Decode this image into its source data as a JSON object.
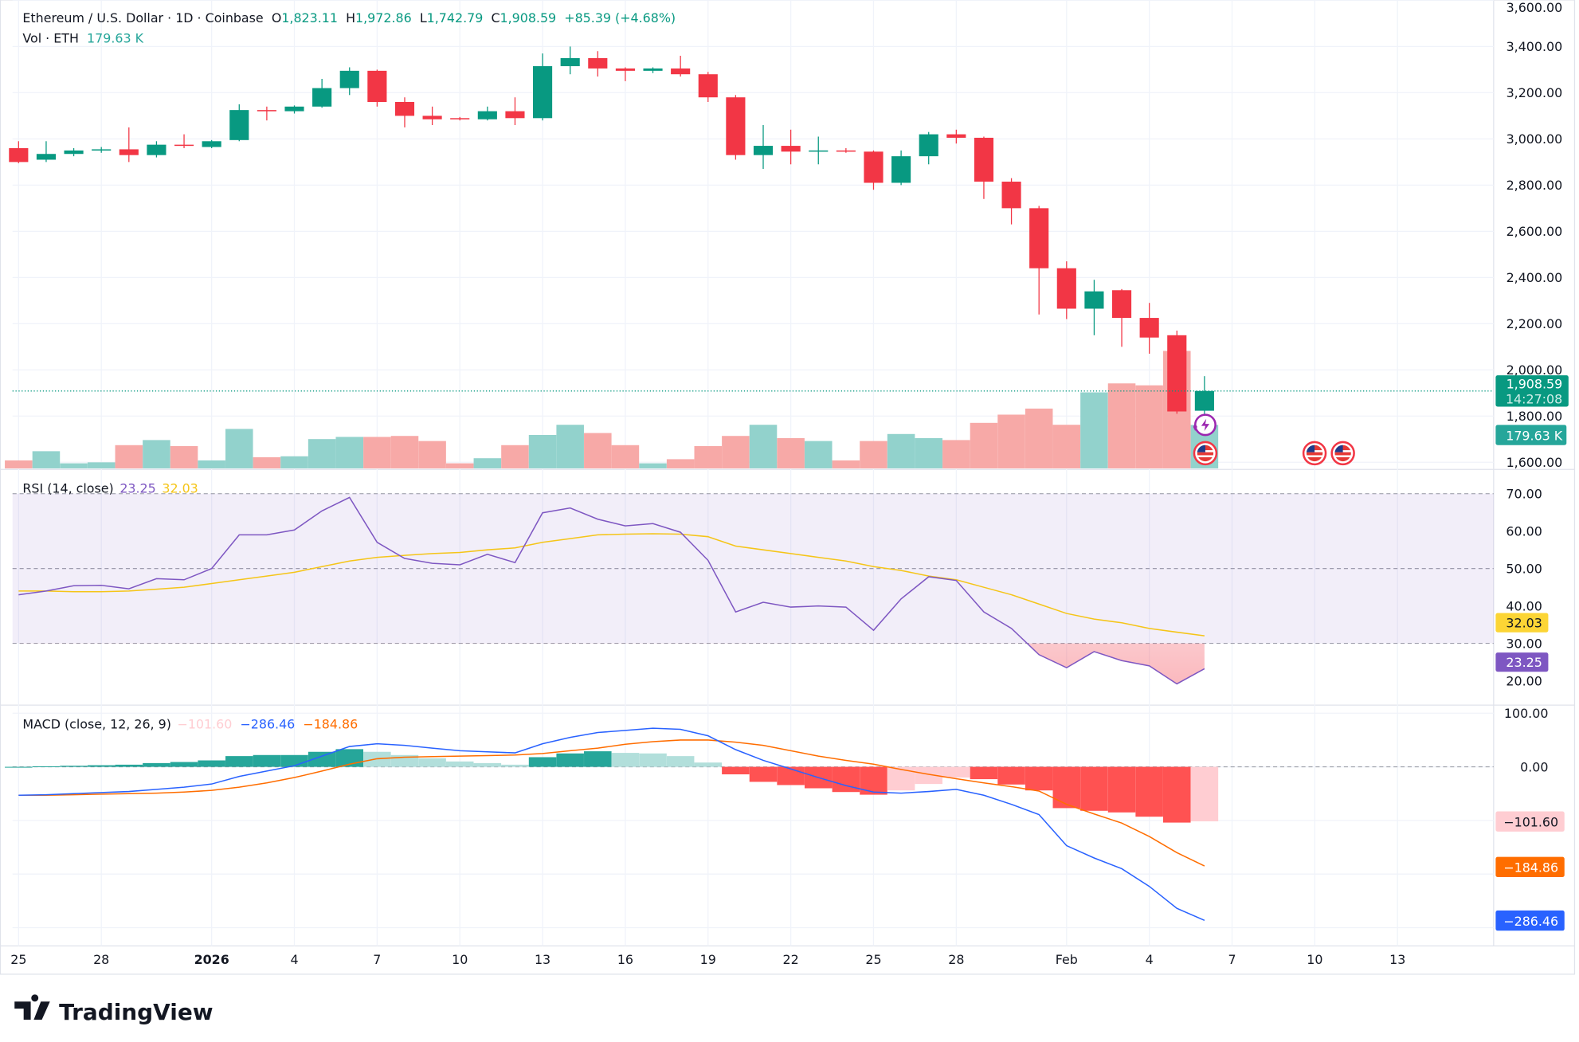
{
  "header": {
    "symbol": "Ethereum / U.S. Dollar · 1D · Coinbase",
    "o_label": "O",
    "o": "1,823.11",
    "h_label": "H",
    "h": "1,972.86",
    "l_label": "L",
    "l": "1,742.79",
    "c_label": "C",
    "c": "1,908.59",
    "change": "+85.39 (+4.68%)",
    "vol_label": "Vol · ETH",
    "vol": "179.63 K"
  },
  "rsi_legend": {
    "name": "RSI (14, close)",
    "rsi": "23.25",
    "ma": "32.03"
  },
  "macd_legend": {
    "name": "MACD (close, 12, 26, 9)",
    "hist": "−101.60",
    "macd": "−286.46",
    "signal": "−184.86"
  },
  "axis_labels": {
    "price_last": "1,908.59",
    "countdown": "14:27:08",
    "volume_last": "179.63 K",
    "rsi_ma": "32.03",
    "rsi": "23.25",
    "macd_hist": "−101.60",
    "macd_signal": "−184.86",
    "macd": "−286.46"
  },
  "brand": "TradingView",
  "colors": {
    "up": "#089981",
    "down": "#f23645",
    "rsi": "#7e57c2",
    "rsi_ma": "#f5c518",
    "macd": "#2962ff",
    "signal": "#ff6d00"
  },
  "icons": [
    "lightning-icon",
    "us-flag-icon",
    "us-flag-icon",
    "us-flag-icon"
  ],
  "chart_data": [
    {
      "type": "candlestick",
      "title": "Ethereum / U.S. Dollar · 1D · Coinbase",
      "ylim": [
        1600,
        3600
      ],
      "y_ticks": [
        "1,600.00",
        "1,800.00",
        "2,000.00",
        "2,200.00",
        "2,400.00",
        "2,600.00",
        "2,800.00",
        "3,000.00",
        "3,200.00",
        "3,400.00",
        "3,600.00"
      ],
      "start_date": "2025-12-25",
      "x_ticks": [
        {
          "label": "25",
          "day": 0
        },
        {
          "label": "28",
          "day": 3
        },
        {
          "label": "2026",
          "day": 7
        },
        {
          "label": "4",
          "day": 10
        },
        {
          "label": "7",
          "day": 13
        },
        {
          "label": "10",
          "day": 16
        },
        {
          "label": "13",
          "day": 19
        },
        {
          "label": "16",
          "day": 22
        },
        {
          "label": "19",
          "day": 25
        },
        {
          "label": "22",
          "day": 28
        },
        {
          "label": "25",
          "day": 31
        },
        {
          "label": "28",
          "day": 34
        },
        {
          "label": "Feb",
          "day": 38
        },
        {
          "label": "4",
          "day": 41
        },
        {
          "label": "7",
          "day": 44
        },
        {
          "label": "10",
          "day": 47
        },
        {
          "label": "13",
          "day": 50
        }
      ],
      "open": [
        2960,
        2910,
        2935,
        2950,
        2955,
        2930,
        2975,
        2965,
        2995,
        3125,
        3120,
        3140,
        3220,
        3295,
        3160,
        3100,
        3090,
        3085,
        3120,
        3090,
        3315,
        3350,
        3305,
        3295,
        3305,
        3280,
        3180,
        2930,
        2970,
        2945,
        2950,
        2945,
        2810,
        2925,
        3020,
        3005,
        2815,
        2700,
        2440,
        2265,
        2345,
        2225,
        2150,
        1823.11
      ],
      "high": [
        2990,
        2990,
        2960,
        2965,
        3050,
        2990,
        3020,
        2995,
        3150,
        3140,
        3145,
        3260,
        3310,
        3300,
        3180,
        3140,
        3095,
        3140,
        3180,
        3370,
        3400,
        3380,
        3310,
        3310,
        3360,
        3290,
        3190,
        3060,
        3040,
        3010,
        2960,
        2950,
        2950,
        3030,
        3040,
        3010,
        2830,
        2710,
        2470,
        2390,
        2350,
        2290,
        2170,
        1972.86
      ],
      "low": [
        2895,
        2900,
        2925,
        2940,
        2900,
        2920,
        2960,
        2960,
        2990,
        3080,
        3110,
        3135,
        3190,
        3140,
        3050,
        3060,
        3080,
        3080,
        3060,
        3080,
        3280,
        3270,
        3250,
        3285,
        3270,
        3160,
        2910,
        2870,
        2890,
        2890,
        2940,
        2780,
        2800,
        2890,
        2980,
        2740,
        2630,
        2240,
        2220,
        2150,
        2100,
        2070,
        1810,
        1742.79
      ],
      "close": [
        2900,
        2935,
        2950,
        2955,
        2930,
        2975,
        2970,
        2990,
        3125,
        3120,
        3140,
        3220,
        3295,
        3160,
        3100,
        3085,
        3085,
        3120,
        3090,
        3315,
        3350,
        3305,
        3295,
        3305,
        3280,
        3180,
        2930,
        2970,
        2945,
        2950,
        2945,
        2810,
        2925,
        3020,
        3005,
        2815,
        2700,
        2440,
        2265,
        2340,
        2225,
        2140,
        1820,
        1908.59
      ],
      "volume_k": [
        33,
        71,
        21,
        25,
        96,
        117,
        92,
        33,
        163,
        46,
        50,
        121,
        130,
        130,
        134,
        113,
        21,
        42,
        96,
        138,
        180,
        146,
        96,
        21,
        38,
        92,
        134,
        180,
        125,
        113,
        33,
        113,
        142,
        125,
        117,
        188,
        222,
        247,
        180,
        314,
        351,
        343,
        485,
        179.63
      ],
      "last_price": 1908.59
    },
    {
      "type": "line",
      "title": "RSI (14, close)",
      "ylim": [
        15,
        75
      ],
      "y_ticks": [
        "20.00",
        "30.00",
        "40.00",
        "50.00",
        "60.00",
        "70.00"
      ],
      "band": [
        30,
        70
      ],
      "series": [
        {
          "name": "RSI",
          "values": [
            43,
            44,
            45.4,
            45.5,
            44.6,
            47.3,
            47,
            50,
            59,
            59,
            60.3,
            65.4,
            69,
            57,
            52.7,
            51.4,
            51,
            53.8,
            51.6,
            64.9,
            66.2,
            63.2,
            61.4,
            62,
            59.7,
            52.2,
            38.4,
            41,
            39.7,
            40,
            39.7,
            33.5,
            41.9,
            47.8,
            46.8,
            38.4,
            34,
            27,
            23.5,
            27.8,
            25.4,
            24,
            19.2,
            23.25
          ]
        },
        {
          "name": "RSI-based MA",
          "values": [
            44,
            44,
            43.8,
            43.8,
            44,
            44.5,
            45,
            46,
            47,
            48,
            49,
            50.5,
            52,
            53,
            53.5,
            54,
            54.3,
            55,
            55.5,
            57,
            58,
            59,
            59.2,
            59.3,
            59.2,
            58.5,
            56,
            55,
            54,
            53,
            52,
            50.5,
            49.5,
            48,
            47,
            45,
            43,
            40.5,
            38,
            36.5,
            35.5,
            34,
            33,
            32.03
          ]
        }
      ]
    },
    {
      "type": "line+bar",
      "title": "MACD (close, 12, 26, 9)",
      "ylim": [
        -300,
        100
      ],
      "y_ticks": [
        "100.00",
        "0.00"
      ],
      "series": [
        {
          "name": "MACD",
          "values": [
            -53,
            -52,
            -50,
            -48,
            -46,
            -42,
            -38,
            -32,
            -18,
            -8,
            2,
            20,
            38,
            43,
            40,
            35,
            30,
            28,
            26,
            43,
            55,
            64,
            68,
            72,
            70,
            58,
            32,
            12,
            -4,
            -20,
            -35,
            -47,
            -49,
            -46,
            -42,
            -53,
            -70,
            -89,
            -147,
            -170,
            -190,
            -223,
            -264,
            -286.46
          ]
        },
        {
          "name": "Signal",
          "values": [
            -53,
            -53,
            -52,
            -51,
            -50,
            -49,
            -47,
            -44,
            -38,
            -30,
            -20,
            -8,
            5,
            15,
            18,
            19,
            20,
            21,
            22,
            25,
            30,
            35,
            42,
            47,
            50,
            50,
            46,
            40,
            30,
            20,
            12,
            5,
            -5,
            -14,
            -22,
            -30,
            -37,
            -45,
            -70,
            -88,
            -105,
            -130,
            -160,
            -184.86
          ]
        }
      ]
    }
  ]
}
